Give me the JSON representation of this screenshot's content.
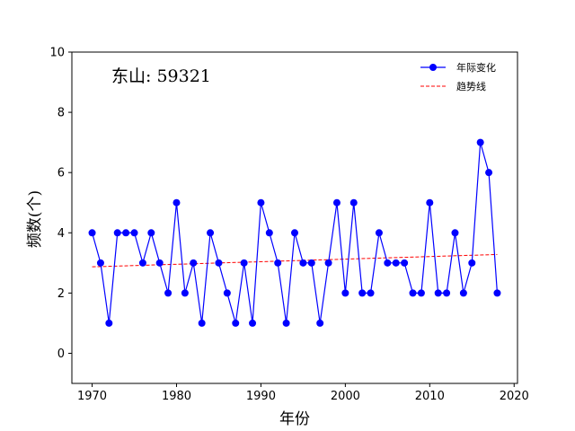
{
  "chart_data": {
    "type": "line",
    "annotation": "东山: 59321",
    "xlabel": "年份",
    "ylabel": "频数(个)",
    "xlim": [
      1967.6,
      2020.4
    ],
    "ylim": [
      -1,
      10
    ],
    "xticks": [
      1970,
      1980,
      1990,
      2000,
      2010,
      2020
    ],
    "yticks": [
      0,
      2,
      4,
      6,
      8,
      10
    ],
    "grid": false,
    "legend_position": "top-right",
    "series": [
      {
        "name": "年际变化",
        "color": "#0000ff",
        "style": "solid-line-circle-markers",
        "x": [
          1970,
          1971,
          1972,
          1973,
          1974,
          1975,
          1976,
          1977,
          1978,
          1979,
          1980,
          1981,
          1982,
          1983,
          1984,
          1985,
          1986,
          1987,
          1988,
          1989,
          1990,
          1991,
          1992,
          1993,
          1994,
          1995,
          1996,
          1997,
          1998,
          1999,
          2000,
          2001,
          2002,
          2003,
          2004,
          2005,
          2006,
          2007,
          2008,
          2009,
          2010,
          2011,
          2012,
          2013,
          2014,
          2015,
          2016,
          2017,
          2018
        ],
        "y": [
          4,
          3,
          1,
          4,
          4,
          4,
          3,
          4,
          3,
          2,
          5,
          2,
          3,
          1,
          4,
          3,
          2,
          1,
          3,
          1,
          5,
          4,
          3,
          1,
          4,
          3,
          3,
          1,
          3,
          5,
          2,
          5,
          2,
          2,
          4,
          3,
          3,
          3,
          2,
          2,
          5,
          2,
          2,
          4,
          2,
          3,
          7,
          6,
          2
        ]
      },
      {
        "name": "趋势线",
        "color": "#ff0000",
        "style": "dashed-line",
        "x": [
          1970,
          2018
        ],
        "y": [
          2.87,
          3.28
        ]
      }
    ]
  }
}
